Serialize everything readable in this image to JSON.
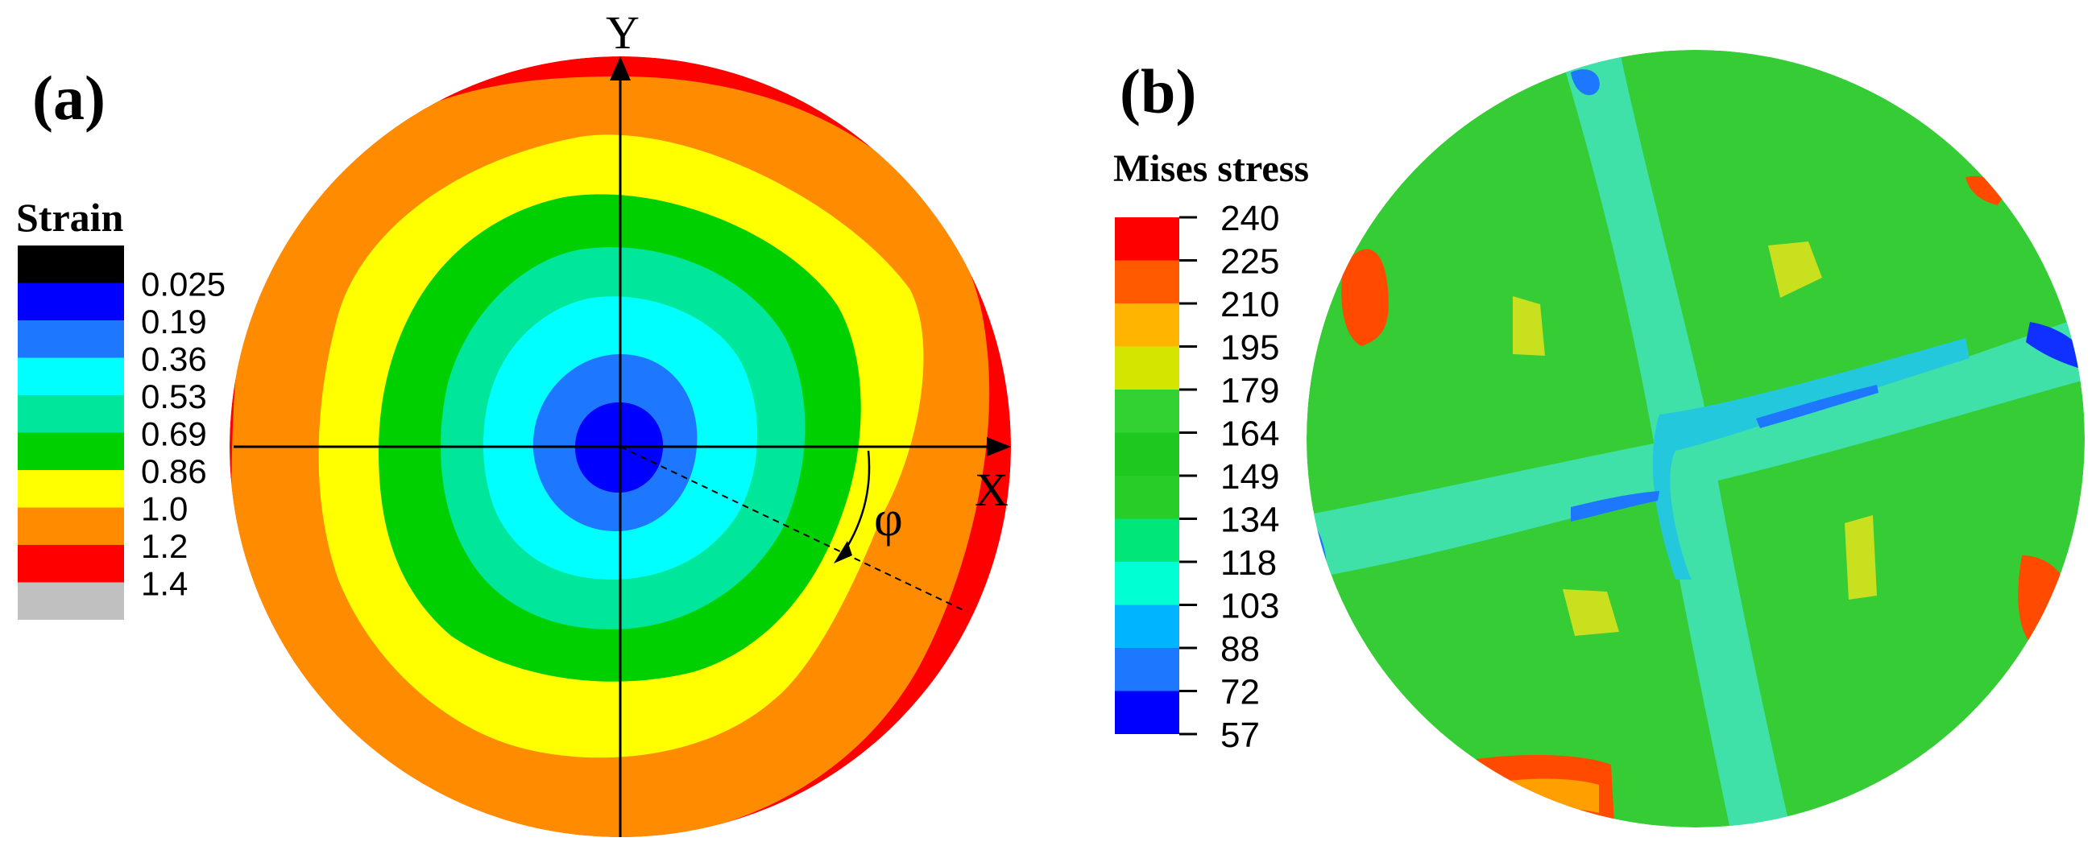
{
  "panel_a": {
    "label": "(a)",
    "legend": {
      "title": "Strain",
      "values": [
        "0.025",
        "0.19",
        "0.36",
        "0.53",
        "0.69",
        "0.86",
        "1.0",
        "1.2",
        "1.4"
      ],
      "colors": [
        "#000000",
        "#0000ff",
        "#1e78ff",
        "#00ffff",
        "#00e69a",
        "#00d000",
        "#ffff00",
        "#ff8c00",
        "#ff0000",
        "#c0c0c0"
      ]
    },
    "axis_y_label": "Y",
    "axis_x_label": "X",
    "angle_label": "φ",
    "contour_colors": [
      "#ff0000",
      "#ff8c00",
      "#ffff00",
      "#00d000",
      "#00e69a",
      "#00ffff",
      "#1e78ff",
      "#0000ff"
    ]
  },
  "panel_b": {
    "label": "(b)",
    "legend": {
      "title": "Mises stress",
      "values": [
        "240",
        "225",
        "210",
        "195",
        "179",
        "164",
        "149",
        "134",
        "118",
        "103",
        "88",
        "72",
        "57"
      ],
      "colors": [
        "#ff0000",
        "#ff5a00",
        "#ffb400",
        "#d4e600",
        "#32d232",
        "#1ec81e",
        "#28cd28",
        "#00e678",
        "#00ffd2",
        "#00b4ff",
        "#1e78ff",
        "#0000ff"
      ]
    },
    "colors": {
      "base": "#35cc35",
      "band": "#3fe1a8",
      "band_dark": "#24c8dc",
      "hot": "#ff4a00",
      "warm": "#ffa000",
      "yellow": "#c8e01e",
      "cool": "#1e78ff",
      "deep": "#1030ff"
    }
  }
}
